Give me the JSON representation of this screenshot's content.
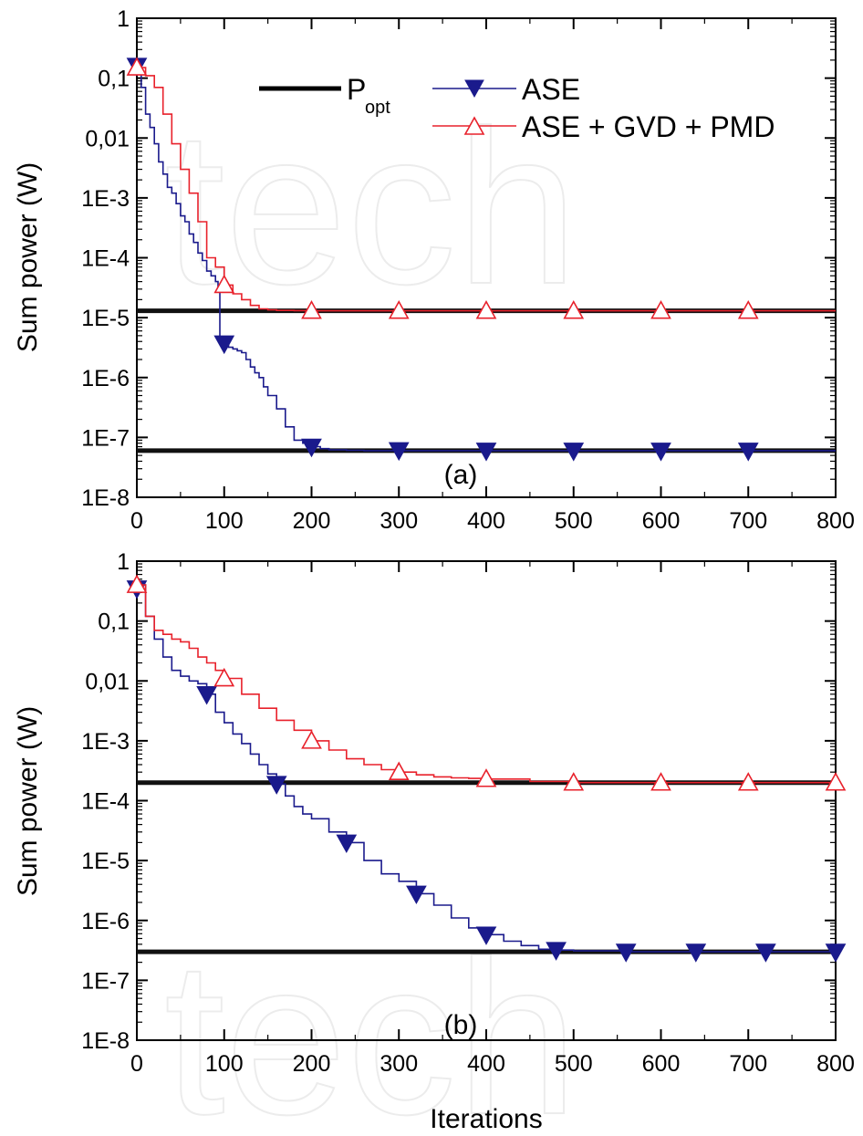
{
  "chart_data": [
    {
      "type": "line",
      "panel_label": "(a)",
      "xlabel": "",
      "ylabel": "Sum power (W)",
      "xlim": [
        0,
        800
      ],
      "ylim": [
        1e-08,
        1
      ],
      "yscale": "log",
      "x_ticks": [
        "0",
        "100",
        "200",
        "300",
        "400",
        "500",
        "600",
        "700",
        "800"
      ],
      "y_ticks": [
        "1",
        "0,1",
        "0,01",
        "1E-3",
        "1E-4",
        "1E-5",
        "1E-6",
        "1E-7",
        "1E-8"
      ],
      "legend": {
        "placement": "top-right",
        "entries": [
          {
            "label": "P",
            "subscript": "opt",
            "style": "thick-black-line"
          },
          {
            "label": "ASE",
            "style": "blue-filled-down-triangle"
          },
          {
            "label": "ASE + GVD + PMD",
            "style": "red-open-up-triangle"
          }
        ]
      },
      "reference_lines": [
        {
          "name": "Popt (ASE + GVD + PMD)",
          "y": 1.3e-05
        },
        {
          "name": "Popt (ASE)",
          "y": 6e-08
        }
      ],
      "series": [
        {
          "name": "ASE",
          "color": "#1a1a8c",
          "marker": "filled-down-triangle",
          "x": [
            0,
            5,
            10,
            15,
            20,
            25,
            30,
            35,
            40,
            45,
            50,
            55,
            60,
            65,
            70,
            75,
            80,
            85,
            90,
            93,
            95,
            100,
            105,
            110,
            115,
            120,
            125,
            130,
            135,
            140,
            145,
            150,
            160,
            170,
            180,
            190,
            200,
            210,
            220,
            240,
            260,
            300,
            350,
            400,
            500,
            600,
            700,
            800
          ],
          "y": [
            0.18,
            0.07,
            0.025,
            0.015,
            0.008,
            0.004,
            0.0025,
            0.0015,
            0.0012,
            0.0008,
            0.0005,
            0.0004,
            0.00025,
            0.00018,
            0.00012,
            9e-05,
            6e-05,
            5e-05,
            4e-05,
            3e-05,
            4e-06,
            3.7e-06,
            3.2e-06,
            3e-06,
            2.8e-06,
            2.6e-06,
            2e-06,
            1.5e-06,
            1.2e-06,
            1e-06,
            7e-07,
            5e-07,
            3e-07,
            1.5e-07,
            9e-08,
            8e-08,
            7e-08,
            6.5e-08,
            6.2e-08,
            6.1e-08,
            6e-08,
            6e-08,
            6e-08,
            6e-08,
            6e-08,
            6e-08,
            6e-08,
            6e-08
          ],
          "markers_x": [
            0,
            100,
            200,
            300,
            400,
            500,
            600,
            700
          ],
          "markers_y": [
            0.16,
            3.7e-06,
            7e-08,
            6.1e-08,
            6e-08,
            6e-08,
            6e-08,
            6e-08
          ]
        },
        {
          "name": "ASE + GVD + PMD",
          "color": "#e8212b",
          "marker": "open-up-triangle",
          "x": [
            0,
            10,
            20,
            30,
            40,
            50,
            60,
            70,
            80,
            90,
            100,
            110,
            120,
            130,
            140,
            150,
            160,
            180,
            200,
            250,
            300,
            400,
            500,
            600,
            700,
            800
          ],
          "y": [
            0.15,
            0.11,
            0.07,
            0.025,
            0.008,
            0.003,
            0.0012,
            0.0004,
            0.0001,
            7e-05,
            3.5e-05,
            2.5e-05,
            2e-05,
            1.6e-05,
            1.4e-05,
            1.35e-05,
            1.32e-05,
            1.31e-05,
            1.3e-05,
            1.3e-05,
            1.3e-05,
            1.3e-05,
            1.3e-05,
            1.3e-05,
            1.3e-05,
            1.3e-05
          ],
          "markers_x": [
            0,
            100,
            200,
            300,
            400,
            500,
            600,
            700
          ],
          "markers_y": [
            0.15,
            3.5e-05,
            1.3e-05,
            1.3e-05,
            1.3e-05,
            1.3e-05,
            1.3e-05,
            1.3e-05
          ]
        }
      ]
    },
    {
      "type": "line",
      "panel_label": "(b)",
      "xlabel": "Iterations",
      "ylabel": "Sum power (W)",
      "xlim": [
        0,
        800
      ],
      "ylim": [
        1e-08,
        1
      ],
      "yscale": "log",
      "x_ticks": [
        "0",
        "100",
        "200",
        "300",
        "400",
        "500",
        "600",
        "700",
        "800"
      ],
      "y_ticks": [
        "1",
        "0,1",
        "0,01",
        "1E-3",
        "1E-4",
        "1E-5",
        "1E-6",
        "1E-7",
        "1E-8"
      ],
      "reference_lines": [
        {
          "name": "Popt (ASE + GVD + PMD)",
          "y": 0.0002
        },
        {
          "name": "Popt (ASE)",
          "y": 3e-07
        }
      ],
      "series": [
        {
          "name": "ASE",
          "color": "#1a1a8c",
          "marker": "filled-down-triangle",
          "x": [
            0,
            10,
            20,
            30,
            40,
            50,
            60,
            70,
            80,
            90,
            100,
            110,
            120,
            130,
            140,
            150,
            160,
            170,
            180,
            190,
            200,
            220,
            240,
            260,
            280,
            300,
            320,
            340,
            360,
            380,
            400,
            420,
            440,
            460,
            480,
            500,
            560,
            640,
            720,
            800
          ],
          "y": [
            0.4,
            0.12,
            0.05,
            0.025,
            0.015,
            0.012,
            0.01,
            0.009,
            0.006,
            0.003,
            0.002,
            0.0013,
            0.0009,
            0.0006,
            0.0004,
            0.00028,
            0.00019,
            0.00012,
            8e-05,
            6e-05,
            5e-05,
            3e-05,
            2e-05,
            1e-05,
            6e-06,
            4.5e-06,
            2.8e-06,
            1.8e-06,
            1.1e-06,
            7.5e-07,
            5.8e-07,
            4.5e-07,
            3.8e-07,
            3.3e-07,
            3.2e-07,
            3.1e-07,
            3e-07,
            3e-07,
            3e-07,
            3e-07
          ],
          "markers_x": [
            0,
            80,
            160,
            240,
            320,
            400,
            480,
            560,
            640,
            720,
            800
          ],
          "markers_y": [
            0.35,
            0.006,
            0.00019,
            2e-05,
            2.8e-06,
            5.8e-07,
            3.2e-07,
            3e-07,
            3e-07,
            3e-07,
            3e-07
          ]
        },
        {
          "name": "ASE + GVD + PMD",
          "color": "#e8212b",
          "marker": "open-up-triangle",
          "x": [
            0,
            10,
            20,
            30,
            40,
            50,
            60,
            70,
            80,
            90,
            100,
            120,
            140,
            160,
            180,
            200,
            220,
            240,
            260,
            280,
            300,
            320,
            340,
            360,
            380,
            400,
            450,
            500,
            600,
            700,
            800
          ],
          "y": [
            0.4,
            0.12,
            0.07,
            0.06,
            0.05,
            0.045,
            0.035,
            0.025,
            0.02,
            0.015,
            0.011,
            0.006,
            0.0035,
            0.0022,
            0.0015,
            0.001,
            0.0007,
            0.0005,
            0.0004,
            0.00033,
            0.0003,
            0.00027,
            0.00025,
            0.00024,
            0.000235,
            0.00023,
            0.00021,
            0.0002,
            0.0002,
            0.0002,
            0.0002
          ],
          "markers_x": [
            0,
            100,
            200,
            300,
            400,
            500,
            600,
            700,
            800
          ],
          "markers_y": [
            0.4,
            0.011,
            0.001,
            0.0003,
            0.00023,
            0.0002,
            0.0002,
            0.0002,
            0.0002
          ]
        }
      ]
    }
  ]
}
